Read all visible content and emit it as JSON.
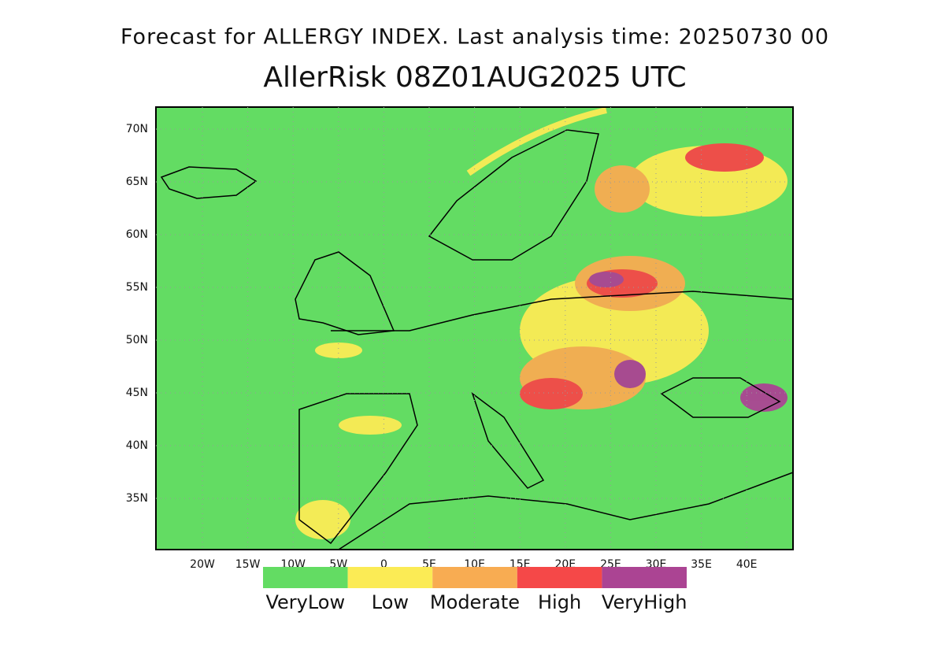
{
  "header": {
    "subtitle": "Forecast for ALLERGY INDEX. Last analysis time: 20250730 00",
    "title": "AllerRisk 08Z01AUG2025 UTC"
  },
  "map": {
    "lat_labels": [
      "70N",
      "65N",
      "60N",
      "55N",
      "50N",
      "45N",
      "40N",
      "35N"
    ],
    "lon_labels": [
      "20W",
      "15W",
      "10W",
      "5W",
      "0",
      "5E",
      "10E",
      "15E",
      "20E",
      "25E",
      "30E",
      "35E",
      "40E"
    ]
  },
  "legend": {
    "items": [
      {
        "label": "VeryLow",
        "color": "#63dc63"
      },
      {
        "label": "Low",
        "color": "#fbeb55"
      },
      {
        "label": "Moderate",
        "color": "#f8ac52"
      },
      {
        "label": "High",
        "color": "#f54848"
      },
      {
        "label": "VeryHigh",
        "color": "#ab4493"
      }
    ]
  }
}
